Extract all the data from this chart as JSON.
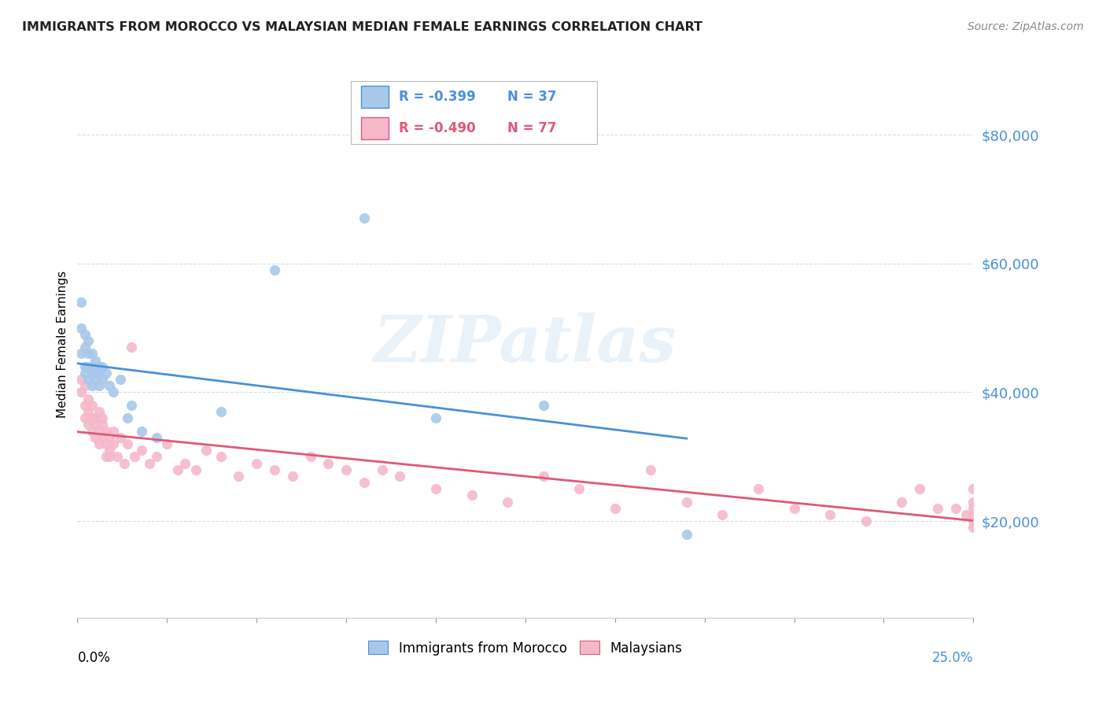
{
  "title": "IMMIGRANTS FROM MOROCCO VS MALAYSIAN MEDIAN FEMALE EARNINGS CORRELATION CHART",
  "source": "Source: ZipAtlas.com",
  "ylabel": "Median Female Earnings",
  "ytick_labels": [
    "$20,000",
    "$40,000",
    "$60,000",
    "$80,000"
  ],
  "ytick_values": [
    20000,
    40000,
    60000,
    80000
  ],
  "xlim": [
    0.0,
    0.25
  ],
  "ylim": [
    5000,
    90000
  ],
  "morocco_color": "#a8c8ea",
  "malaysia_color": "#f5b8cb",
  "trendline_morocco_color": "#4a90d9",
  "trendline_malaysia_color": "#e05878",
  "legend_r_morocco": "R = -0.399",
  "legend_n_morocco": "N = 37",
  "legend_r_malaysia": "R = -0.490",
  "legend_n_malaysia": "N = 77",
  "watermark": "ZIPatlas",
  "morocco_x": [
    0.001,
    0.001,
    0.001,
    0.002,
    0.002,
    0.002,
    0.002,
    0.003,
    0.003,
    0.003,
    0.003,
    0.004,
    0.004,
    0.004,
    0.004,
    0.005,
    0.005,
    0.005,
    0.006,
    0.006,
    0.006,
    0.007,
    0.007,
    0.008,
    0.009,
    0.01,
    0.012,
    0.014,
    0.015,
    0.018,
    0.022,
    0.04,
    0.055,
    0.08,
    0.1,
    0.13,
    0.17
  ],
  "morocco_y": [
    46000,
    50000,
    54000,
    44000,
    47000,
    49000,
    43000,
    44000,
    46000,
    48000,
    42000,
    43000,
    46000,
    44000,
    41000,
    43000,
    45000,
    42000,
    44000,
    43000,
    41000,
    44000,
    42000,
    43000,
    41000,
    40000,
    42000,
    36000,
    38000,
    34000,
    33000,
    37000,
    59000,
    67000,
    36000,
    38000,
    18000
  ],
  "malaysia_x": [
    0.001,
    0.001,
    0.002,
    0.002,
    0.002,
    0.003,
    0.003,
    0.003,
    0.004,
    0.004,
    0.004,
    0.005,
    0.005,
    0.005,
    0.006,
    0.006,
    0.006,
    0.007,
    0.007,
    0.007,
    0.008,
    0.008,
    0.008,
    0.009,
    0.009,
    0.009,
    0.01,
    0.01,
    0.011,
    0.012,
    0.013,
    0.014,
    0.015,
    0.016,
    0.018,
    0.02,
    0.022,
    0.025,
    0.028,
    0.03,
    0.033,
    0.036,
    0.04,
    0.045,
    0.05,
    0.055,
    0.06,
    0.065,
    0.07,
    0.075,
    0.08,
    0.085,
    0.09,
    0.1,
    0.11,
    0.12,
    0.13,
    0.14,
    0.15,
    0.16,
    0.17,
    0.18,
    0.19,
    0.2,
    0.21,
    0.22,
    0.23,
    0.235,
    0.24,
    0.245,
    0.248,
    0.25,
    0.25,
    0.25,
    0.25,
    0.25,
    0.25
  ],
  "malaysia_y": [
    40000,
    42000,
    38000,
    36000,
    41000,
    37000,
    35000,
    39000,
    36000,
    34000,
    38000,
    36000,
    33000,
    35000,
    34000,
    32000,
    37000,
    33000,
    35000,
    36000,
    32000,
    30000,
    34000,
    31000,
    33000,
    30000,
    34000,
    32000,
    30000,
    33000,
    29000,
    32000,
    47000,
    30000,
    31000,
    29000,
    30000,
    32000,
    28000,
    29000,
    28000,
    31000,
    30000,
    27000,
    29000,
    28000,
    27000,
    30000,
    29000,
    28000,
    26000,
    28000,
    27000,
    25000,
    24000,
    23000,
    27000,
    25000,
    22000,
    28000,
    23000,
    21000,
    25000,
    22000,
    21000,
    20000,
    23000,
    25000,
    22000,
    22000,
    21000,
    25000,
    22000,
    23000,
    21000,
    20000,
    19000
  ]
}
